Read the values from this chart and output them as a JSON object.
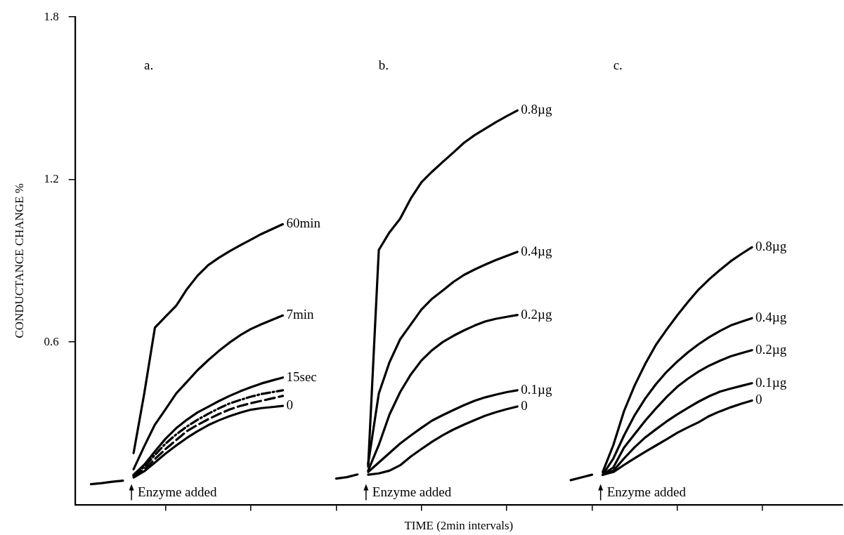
{
  "chart_data": {
    "type": "line",
    "xlabel": "TIME (2min intervals)",
    "ylabel": "CONDUCTANCE CHANGE %",
    "categories": [
      null,
      null,
      null,
      null,
      null,
      null,
      null,
      null,
      null,
      null,
      null,
      null,
      null,
      null,
      null,
      null,
      null,
      null,
      null,
      null,
      null,
      null,
      null,
      null,
      null,
      null,
      null,
      null,
      null,
      null,
      null,
      null,
      null,
      null,
      null,
      null,
      null,
      null,
      null,
      null,
      null,
      null,
      null,
      null,
      null,
      null,
      null,
      null,
      null,
      null,
      null,
      null,
      null,
      null,
      null,
      null,
      null,
      null,
      null,
      null,
      null,
      null,
      null,
      null,
      null,
      null,
      null,
      null,
      null,
      null,
      null,
      null
    ],
    "ylim": [
      0,
      1.8
    ],
    "yticks": [
      0.6,
      1.2,
      1.8
    ],
    "tick_labels": "y",
    "series": [
      {
        "color": "#000000",
        "line_style": "solid",
        "values": [
          null,
          0.075,
          0.079,
          0.084,
          0.088,
          null,
          null,
          null,
          null,
          null,
          null,
          null,
          null,
          null,
          null,
          null,
          null,
          null,
          null,
          null,
          null,
          null,
          null,
          null,
          null,
          null,
          null,
          null,
          null,
          null,
          null,
          null,
          null,
          null,
          null,
          null,
          null,
          null,
          null,
          null,
          null,
          null,
          null,
          null,
          null,
          null,
          null,
          null,
          null,
          null,
          null,
          null,
          null,
          null,
          null,
          null,
          null,
          null,
          null,
          null,
          null,
          null,
          null,
          null,
          null,
          null,
          null,
          null,
          null,
          null,
          null,
          null
        ]
      },
      {
        "name": "60min",
        "color": "#000000",
        "line_style": "solid",
        "values": [
          null,
          null,
          null,
          null,
          null,
          0.19,
          0.41,
          0.653,
          0.694,
          0.734,
          0.795,
          0.845,
          0.884,
          0.911,
          0.935,
          0.957,
          0.978,
          0.999,
          1.017,
          1.035,
          null,
          null,
          null,
          null,
          null,
          null,
          null,
          null,
          null,
          null,
          null,
          null,
          null,
          null,
          null,
          null,
          null,
          null,
          null,
          null,
          null,
          null,
          null,
          null,
          null,
          null,
          null,
          null,
          null,
          null,
          null,
          null,
          null,
          null,
          null,
          null,
          null,
          null,
          null,
          null,
          null,
          null,
          null,
          null,
          null,
          null,
          null,
          null,
          null,
          null,
          null,
          null
        ]
      },
      {
        "name": "7min",
        "color": "#000000",
        "line_style": "solid",
        "values": [
          null,
          null,
          null,
          null,
          null,
          0.13,
          0.215,
          0.295,
          0.352,
          0.41,
          0.453,
          0.496,
          0.533,
          0.567,
          0.598,
          0.625,
          0.648,
          0.666,
          0.682,
          0.698,
          null,
          null,
          null,
          null,
          null,
          null,
          null,
          null,
          null,
          null,
          null,
          null,
          null,
          null,
          null,
          null,
          null,
          null,
          null,
          null,
          null,
          null,
          null,
          null,
          null,
          null,
          null,
          null,
          null,
          null,
          null,
          null,
          null,
          null,
          null,
          null,
          null,
          null,
          null,
          null,
          null,
          null,
          null,
          null,
          null,
          null,
          null,
          null,
          null,
          null,
          null,
          null
        ]
      },
      {
        "name": "15sec",
        "color": "#000000",
        "line_style": "solid",
        "values": [
          null,
          null,
          null,
          null,
          null,
          0.11,
          0.147,
          0.196,
          0.243,
          0.282,
          0.313,
          0.34,
          0.361,
          0.382,
          0.401,
          0.418,
          0.433,
          0.447,
          0.458,
          0.469,
          null,
          null,
          null,
          null,
          null,
          null,
          null,
          null,
          null,
          null,
          null,
          null,
          null,
          null,
          null,
          null,
          null,
          null,
          null,
          null,
          null,
          null,
          null,
          null,
          null,
          null,
          null,
          null,
          null,
          null,
          null,
          null,
          null,
          null,
          null,
          null,
          null,
          null,
          null,
          null,
          null,
          null,
          null,
          null,
          null,
          null,
          null,
          null,
          null,
          null,
          null,
          null
        ]
      },
      {
        "color": "#000000",
        "line_style": "dotted",
        "values": [
          null,
          null,
          null,
          null,
          null,
          0.108,
          0.139,
          0.183,
          0.225,
          0.259,
          0.288,
          0.313,
          0.335,
          0.355,
          0.373,
          0.386,
          0.398,
          0.408,
          0.415,
          0.422,
          null,
          null,
          null,
          null,
          null,
          null,
          null,
          null,
          null,
          null,
          null,
          null,
          null,
          null,
          null,
          null,
          null,
          null,
          null,
          null,
          null,
          null,
          null,
          null,
          null,
          null,
          null,
          null,
          null,
          null,
          null,
          null,
          null,
          null,
          null,
          null,
          null,
          null,
          null,
          null,
          null,
          null,
          null,
          null,
          null,
          null,
          null,
          null,
          null,
          null,
          null,
          null
        ]
      },
      {
        "color": "#000000",
        "line_style": "dashed",
        "values": [
          null,
          null,
          null,
          null,
          null,
          0.105,
          0.13,
          0.168,
          0.205,
          0.238,
          0.271,
          0.294,
          0.315,
          0.334,
          0.351,
          0.364,
          0.374,
          0.383,
          0.392,
          0.401,
          null,
          null,
          null,
          null,
          null,
          null,
          null,
          null,
          null,
          null,
          null,
          null,
          null,
          null,
          null,
          null,
          null,
          null,
          null,
          null,
          null,
          null,
          null,
          null,
          null,
          null,
          null,
          null,
          null,
          null,
          null,
          null,
          null,
          null,
          null,
          null,
          null,
          null,
          null,
          null,
          null,
          null,
          null,
          null,
          null,
          null,
          null,
          null,
          null,
          null,
          null,
          null
        ]
      },
      {
        "name": "0",
        "color": "#000000",
        "line_style": "solid",
        "values": [
          null,
          null,
          null,
          null,
          null,
          0.1,
          0.123,
          0.155,
          0.188,
          0.218,
          0.246,
          0.271,
          0.293,
          0.311,
          0.326,
          0.339,
          0.35,
          0.356,
          0.36,
          0.364,
          null,
          null,
          null,
          null,
          null,
          null,
          null,
          null,
          null,
          null,
          null,
          null,
          null,
          null,
          null,
          null,
          null,
          null,
          null,
          null,
          null,
          null,
          null,
          null,
          null,
          null,
          null,
          null,
          null,
          null,
          null,
          null,
          null,
          null,
          null,
          null,
          null,
          null,
          null,
          null,
          null,
          null,
          null,
          null,
          null,
          null,
          null,
          null,
          null,
          null,
          null,
          null
        ]
      },
      {
        "color": "#000000",
        "line_style": "solid",
        "values": [
          null,
          null,
          null,
          null,
          null,
          null,
          null,
          null,
          null,
          null,
          null,
          null,
          null,
          null,
          null,
          null,
          null,
          null,
          null,
          null,
          null,
          null,
          null,
          null,
          0.096,
          0.101,
          0.111,
          null,
          null,
          null,
          null,
          null,
          null,
          null,
          null,
          null,
          null,
          null,
          null,
          null,
          null,
          null,
          null,
          null,
          null,
          null,
          null,
          null,
          null,
          null,
          null,
          null,
          null,
          null,
          null,
          null,
          null,
          null,
          null,
          null,
          null,
          null,
          null,
          null,
          null,
          null,
          null,
          null,
          null,
          null,
          null,
          null
        ]
      },
      {
        "name": "0.8µg",
        "color": "#000000",
        "line_style": "solid",
        "values": [
          null,
          null,
          null,
          null,
          null,
          null,
          null,
          null,
          null,
          null,
          null,
          null,
          null,
          null,
          null,
          null,
          null,
          null,
          null,
          null,
          null,
          null,
          null,
          null,
          null,
          null,
          null,
          0.14,
          0.94,
          1.005,
          1.055,
          1.13,
          1.19,
          1.229,
          1.265,
          1.3,
          1.336,
          1.364,
          1.388,
          1.412,
          1.434,
          1.455,
          null,
          null,
          null,
          null,
          null,
          null,
          null,
          null,
          null,
          null,
          null,
          null,
          null,
          null,
          null,
          null,
          null,
          null,
          null,
          null,
          null,
          null,
          null,
          null,
          null,
          null,
          null,
          null,
          null,
          null
        ]
      },
      {
        "name": "0.4µg",
        "color": "#000000",
        "line_style": "solid",
        "values": [
          null,
          null,
          null,
          null,
          null,
          null,
          null,
          null,
          null,
          null,
          null,
          null,
          null,
          null,
          null,
          null,
          null,
          null,
          null,
          null,
          null,
          null,
          null,
          null,
          null,
          null,
          null,
          0.15,
          0.41,
          0.525,
          0.61,
          0.665,
          0.72,
          0.76,
          0.79,
          0.822,
          0.848,
          0.868,
          0.886,
          0.903,
          0.918,
          0.933,
          null,
          null,
          null,
          null,
          null,
          null,
          null,
          null,
          null,
          null,
          null,
          null,
          null,
          null,
          null,
          null,
          null,
          null,
          null,
          null,
          null,
          null,
          null,
          null,
          null,
          null,
          null,
          null,
          null,
          null
        ]
      },
      {
        "name": "0.2µg",
        "color": "#000000",
        "line_style": "solid",
        "values": [
          null,
          null,
          null,
          null,
          null,
          null,
          null,
          null,
          null,
          null,
          null,
          null,
          null,
          null,
          null,
          null,
          null,
          null,
          null,
          null,
          null,
          null,
          null,
          null,
          null,
          null,
          null,
          0.125,
          0.22,
          0.332,
          0.415,
          0.48,
          0.532,
          0.57,
          0.6,
          0.623,
          0.643,
          0.661,
          0.676,
          0.686,
          0.693,
          0.7,
          null,
          null,
          null,
          null,
          null,
          null,
          null,
          null,
          null,
          null,
          null,
          null,
          null,
          null,
          null,
          null,
          null,
          null,
          null,
          null,
          null,
          null,
          null,
          null,
          null,
          null,
          null,
          null,
          null,
          null
        ]
      },
      {
        "name": "0.1µg",
        "color": "#000000",
        "line_style": "solid",
        "values": [
          null,
          null,
          null,
          null,
          null,
          null,
          null,
          null,
          null,
          null,
          null,
          null,
          null,
          null,
          null,
          null,
          null,
          null,
          null,
          null,
          null,
          null,
          null,
          null,
          null,
          null,
          null,
          0.12,
          0.155,
          0.19,
          0.225,
          0.255,
          0.283,
          0.31,
          0.33,
          0.349,
          0.367,
          0.383,
          0.396,
          0.406,
          0.415,
          0.422,
          null,
          null,
          null,
          null,
          null,
          null,
          null,
          null,
          null,
          null,
          null,
          null,
          null,
          null,
          null,
          null,
          null,
          null,
          null,
          null,
          null,
          null,
          null,
          null,
          null,
          null,
          null,
          null,
          null,
          null
        ]
      },
      {
        "name": "0",
        "color": "#000000",
        "line_style": "solid",
        "values": [
          null,
          null,
          null,
          null,
          null,
          null,
          null,
          null,
          null,
          null,
          null,
          null,
          null,
          null,
          null,
          null,
          null,
          null,
          null,
          null,
          null,
          null,
          null,
          null,
          null,
          null,
          null,
          0.11,
          0.115,
          0.125,
          0.145,
          0.177,
          0.205,
          0.232,
          0.256,
          0.277,
          0.295,
          0.312,
          0.328,
          0.341,
          0.352,
          0.362,
          null,
          null,
          null,
          null,
          null,
          null,
          null,
          null,
          null,
          null,
          null,
          null,
          null,
          null,
          null,
          null,
          null,
          null,
          null,
          null,
          null,
          null,
          null,
          null,
          null,
          null,
          null,
          null,
          null,
          null
        ]
      },
      {
        "color": "#000000",
        "line_style": "solid",
        "values": [
          null,
          null,
          null,
          null,
          null,
          null,
          null,
          null,
          null,
          null,
          null,
          null,
          null,
          null,
          null,
          null,
          null,
          null,
          null,
          null,
          null,
          null,
          null,
          null,
          null,
          null,
          null,
          null,
          null,
          null,
          null,
          null,
          null,
          null,
          null,
          null,
          null,
          null,
          null,
          null,
          null,
          null,
          null,
          null,
          null,
          null,
          0.09,
          0.1,
          0.11,
          null,
          null,
          null,
          null,
          null,
          null,
          null,
          null,
          null,
          null,
          null,
          null,
          null,
          null,
          null,
          null,
          null,
          null,
          null,
          null,
          null,
          null,
          null
        ]
      },
      {
        "name": "0.8µg",
        "color": "#000000",
        "line_style": "solid",
        "values": [
          null,
          null,
          null,
          null,
          null,
          null,
          null,
          null,
          null,
          null,
          null,
          null,
          null,
          null,
          null,
          null,
          null,
          null,
          null,
          null,
          null,
          null,
          null,
          null,
          null,
          null,
          null,
          null,
          null,
          null,
          null,
          null,
          null,
          null,
          null,
          null,
          null,
          null,
          null,
          null,
          null,
          null,
          null,
          null,
          null,
          null,
          null,
          null,
          null,
          0.12,
          0.22,
          0.345,
          0.44,
          0.52,
          0.59,
          0.646,
          0.699,
          0.748,
          0.794,
          0.832,
          0.866,
          0.898,
          0.925,
          0.95,
          null,
          null,
          null,
          null,
          null,
          null,
          null,
          null
        ]
      },
      {
        "name": "0.4µg",
        "color": "#000000",
        "line_style": "solid",
        "values": [
          null,
          null,
          null,
          null,
          null,
          null,
          null,
          null,
          null,
          null,
          null,
          null,
          null,
          null,
          null,
          null,
          null,
          null,
          null,
          null,
          null,
          null,
          null,
          null,
          null,
          null,
          null,
          null,
          null,
          null,
          null,
          null,
          null,
          null,
          null,
          null,
          null,
          null,
          null,
          null,
          null,
          null,
          null,
          null,
          null,
          null,
          null,
          null,
          null,
          0.11,
          0.17,
          0.255,
          0.33,
          0.392,
          0.445,
          0.49,
          0.528,
          0.562,
          0.592,
          0.618,
          0.641,
          0.661,
          0.675,
          0.688,
          null,
          null,
          null,
          null,
          null,
          null,
          null,
          null
        ]
      },
      {
        "name": "0.2µg",
        "color": "#000000",
        "line_style": "solid",
        "values": [
          null,
          null,
          null,
          null,
          null,
          null,
          null,
          null,
          null,
          null,
          null,
          null,
          null,
          null,
          null,
          null,
          null,
          null,
          null,
          null,
          null,
          null,
          null,
          null,
          null,
          null,
          null,
          null,
          null,
          null,
          null,
          null,
          null,
          null,
          null,
          null,
          null,
          null,
          null,
          null,
          null,
          null,
          null,
          null,
          null,
          null,
          null,
          null,
          null,
          0.11,
          0.137,
          0.21,
          0.26,
          0.31,
          0.355,
          0.397,
          0.435,
          0.465,
          0.491,
          0.513,
          0.531,
          0.547,
          0.559,
          0.57,
          null,
          null,
          null,
          null,
          null,
          null,
          null,
          null
        ]
      },
      {
        "name": "0.1µg",
        "color": "#000000",
        "line_style": "solid",
        "values": [
          null,
          null,
          null,
          null,
          null,
          null,
          null,
          null,
          null,
          null,
          null,
          null,
          null,
          null,
          null,
          null,
          null,
          null,
          null,
          null,
          null,
          null,
          null,
          null,
          null,
          null,
          null,
          null,
          null,
          null,
          null,
          null,
          null,
          null,
          null,
          null,
          null,
          null,
          null,
          null,
          null,
          null,
          null,
          null,
          null,
          null,
          null,
          null,
          null,
          0.11,
          0.125,
          0.17,
          0.212,
          0.248,
          0.278,
          0.307,
          0.333,
          0.357,
          0.38,
          0.4,
          0.417,
          0.428,
          0.438,
          0.448,
          null,
          null,
          null,
          null,
          null,
          null,
          null,
          null
        ]
      },
      {
        "name": "0",
        "color": "#000000",
        "line_style": "solid",
        "values": [
          null,
          null,
          null,
          null,
          null,
          null,
          null,
          null,
          null,
          null,
          null,
          null,
          null,
          null,
          null,
          null,
          null,
          null,
          null,
          null,
          null,
          null,
          null,
          null,
          null,
          null,
          null,
          null,
          null,
          null,
          null,
          null,
          null,
          null,
          null,
          null,
          null,
          null,
          null,
          null,
          null,
          null,
          null,
          null,
          null,
          null,
          null,
          null,
          null,
          0.11,
          0.12,
          0.146,
          0.171,
          0.195,
          0.218,
          0.241,
          0.265,
          0.285,
          0.304,
          0.327,
          0.344,
          0.359,
          0.372,
          0.384,
          null,
          null,
          null,
          null,
          null,
          null,
          null,
          null
        ]
      }
    ],
    "annotations": [
      "a.",
      "b.",
      "c.",
      "Enzyme added",
      "Enzyme added",
      "Enzyme added"
    ]
  }
}
